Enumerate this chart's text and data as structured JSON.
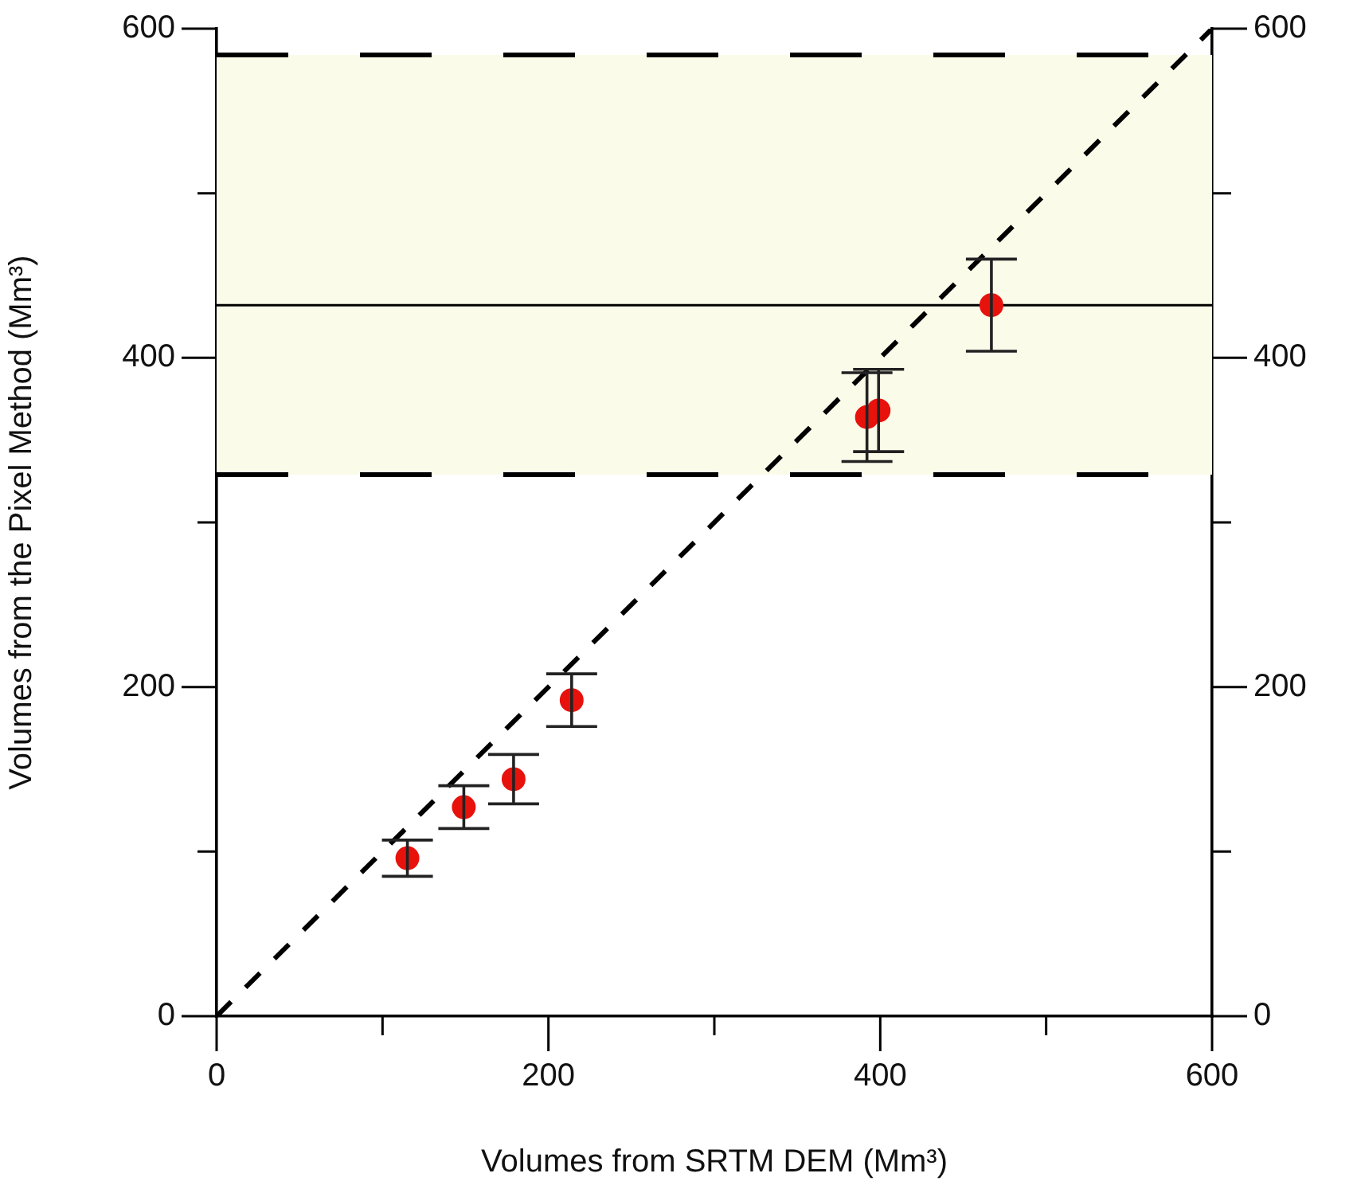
{
  "chart_data": {
    "type": "scatter",
    "xlabel": "Volumes from SRTM DEM (Mm³)",
    "ylabel": "Volumes from the Pixel Method (Mm³)",
    "xlim": [
      0,
      600
    ],
    "xticks": [
      0,
      {
        "value": 100,
        "label": null
      },
      200,
      {
        "value": 300,
        "label": null
      },
      400,
      {
        "value": 500,
        "label": null
      },
      600
    ],
    "ylim": [
      0,
      600
    ],
    "yticks": [
      0,
      {
        "value": 100,
        "label": null
      },
      200,
      {
        "value": 300,
        "label": null
      },
      400,
      {
        "value": 500,
        "label": null
      },
      600
    ],
    "y2lim": [
      0,
      600
    ],
    "y2ticks": [
      0,
      {
        "value": 100,
        "label": null
      },
      200,
      {
        "value": 300,
        "label": null
      },
      400,
      {
        "value": 500,
        "label": null
      },
      600
    ],
    "marker": "circle",
    "grid": false,
    "legend": false,
    "series": [
      {
        "type": "scatter",
        "color": "#e8120c",
        "x": [
          115,
          149,
          179,
          214,
          392,
          399,
          467
        ],
        "values": [
          96,
          127,
          144,
          192,
          364,
          368,
          432
        ],
        "errors": [
          11,
          13,
          15,
          16,
          27,
          25,
          28
        ]
      },
      {
        "type": "line",
        "color": "#000000",
        "line_style": "dashed",
        "marker": "none",
        "x": [
          0,
          600
        ],
        "values": [
          0,
          600
        ]
      }
    ],
    "bands": [
      {
        "axis": "y",
        "from": 329,
        "to": 584,
        "color": "#fbfbea"
      }
    ],
    "ref_lines": [
      {
        "axis": "y",
        "value": 329,
        "line_style": "dashed",
        "color": "#000000"
      },
      {
        "axis": "y",
        "value": 584,
        "line_style": "dashed",
        "color": "#000000"
      },
      {
        "axis": "y",
        "value": 432,
        "line_style": "solid",
        "color": "#000000"
      }
    ]
  }
}
